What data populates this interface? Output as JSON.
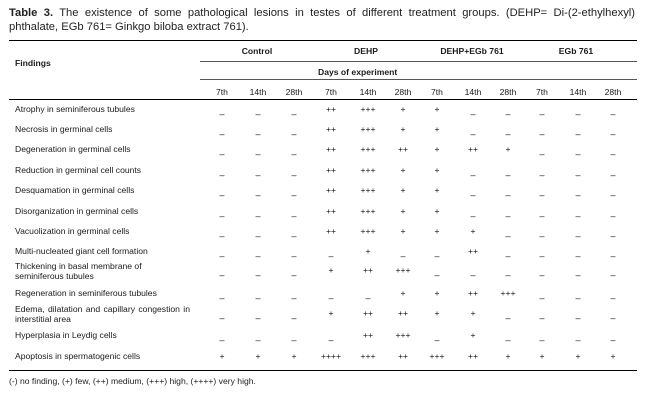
{
  "caption": {
    "label": "Table 3.",
    "text": " The existence of some pathological lesions in testes of different treatment groups. (DEHP= Di-(2-ethylhexyl) phthalate, EGb 761= Ginkgo biloba extract 761)."
  },
  "header": {
    "findings": "Findings",
    "days_of_experiment": "Days of experiment",
    "groups": [
      "Control",
      "DEHP",
      "DEHP+EGb 761",
      "EGb 761"
    ],
    "days": [
      "7th",
      "14th",
      "28th",
      "7th",
      "14th",
      "28th",
      "7th",
      "14th",
      "28th",
      "7th",
      "14th",
      "28th"
    ]
  },
  "rows": [
    {
      "finding": "Atrophy in seminiferous tubules",
      "values": [
        "–",
        "–",
        "–",
        "++",
        "+++",
        "+",
        "+",
        "–",
        "–",
        "–",
        "–",
        "–"
      ]
    },
    {
      "finding": "Necrosis in germinal cells",
      "values": [
        "–",
        "–",
        "–",
        "++",
        "+++",
        "+",
        "+",
        "–",
        "–",
        "–",
        "–",
        "–"
      ]
    },
    {
      "finding": "Degeneration in germinal cells",
      "values": [
        "–",
        "–",
        "–",
        "++",
        "+++",
        "++",
        "+",
        "++",
        "+",
        "–",
        "–",
        "–"
      ]
    },
    {
      "finding": "Reduction in germinal cell counts",
      "values": [
        "–",
        "–",
        "–",
        "++",
        "+++",
        "+",
        "+",
        "–",
        "–",
        "–",
        "–",
        "–"
      ]
    },
    {
      "finding": "Desquamation in germinal cells",
      "values": [
        "–",
        "–",
        "–",
        "++",
        "+++",
        "+",
        "+",
        "–",
        "–",
        "–",
        "–",
        "–"
      ]
    },
    {
      "finding": "Disorganization in germinal cells",
      "values": [
        "–",
        "–",
        "–",
        "++",
        "+++",
        "+",
        "+",
        "–",
        "–",
        "–",
        "–",
        "–"
      ]
    },
    {
      "finding": "Vacuolization in germinal cells",
      "values": [
        "–",
        "–",
        "–",
        "++",
        "+++",
        "+",
        "+",
        "+",
        "–",
        "–",
        "–",
        "–"
      ]
    },
    {
      "finding": "Multi-nucleated giant cell formation",
      "values": [
        "–",
        "–",
        "–",
        "–",
        "+",
        "–",
        "–",
        "++",
        "–",
        "–",
        "–",
        "–"
      ]
    },
    {
      "finding": "Thickening in basal membrane of seminiferous tubules",
      "values": [
        "–",
        "–",
        "–",
        "+",
        "++",
        "+++",
        "–",
        "–",
        "–",
        "–",
        "–",
        "–"
      ]
    },
    {
      "finding": "Regeneration in seminiferous tubules",
      "values": [
        "–",
        "–",
        "–",
        "–",
        "–",
        "+",
        "+",
        "++",
        "+++",
        "–",
        "–",
        "–"
      ]
    },
    {
      "finding": "Edema, dilatation and capillary congestion in interstitial area",
      "values": [
        "–",
        "–",
        "–",
        "+",
        "++",
        "++",
        "+",
        "+",
        "–",
        "–",
        "–",
        "–"
      ]
    },
    {
      "finding": "Hyperplasia in Leydig cells",
      "values": [
        "–",
        "–",
        "–",
        "–",
        "++",
        "+++",
        "–",
        "+",
        "–",
        "–",
        "–",
        "–"
      ]
    },
    {
      "finding": "Apoptosis in spermatogenic cells",
      "values": [
        "+",
        "+",
        "+",
        "++++",
        "+++",
        "++",
        "+++",
        "++",
        "+",
        "+",
        "+",
        "+"
      ]
    }
  ],
  "footnote": "(-) no finding, (+) few, (++) medium, (+++) high, (++++) very high."
}
